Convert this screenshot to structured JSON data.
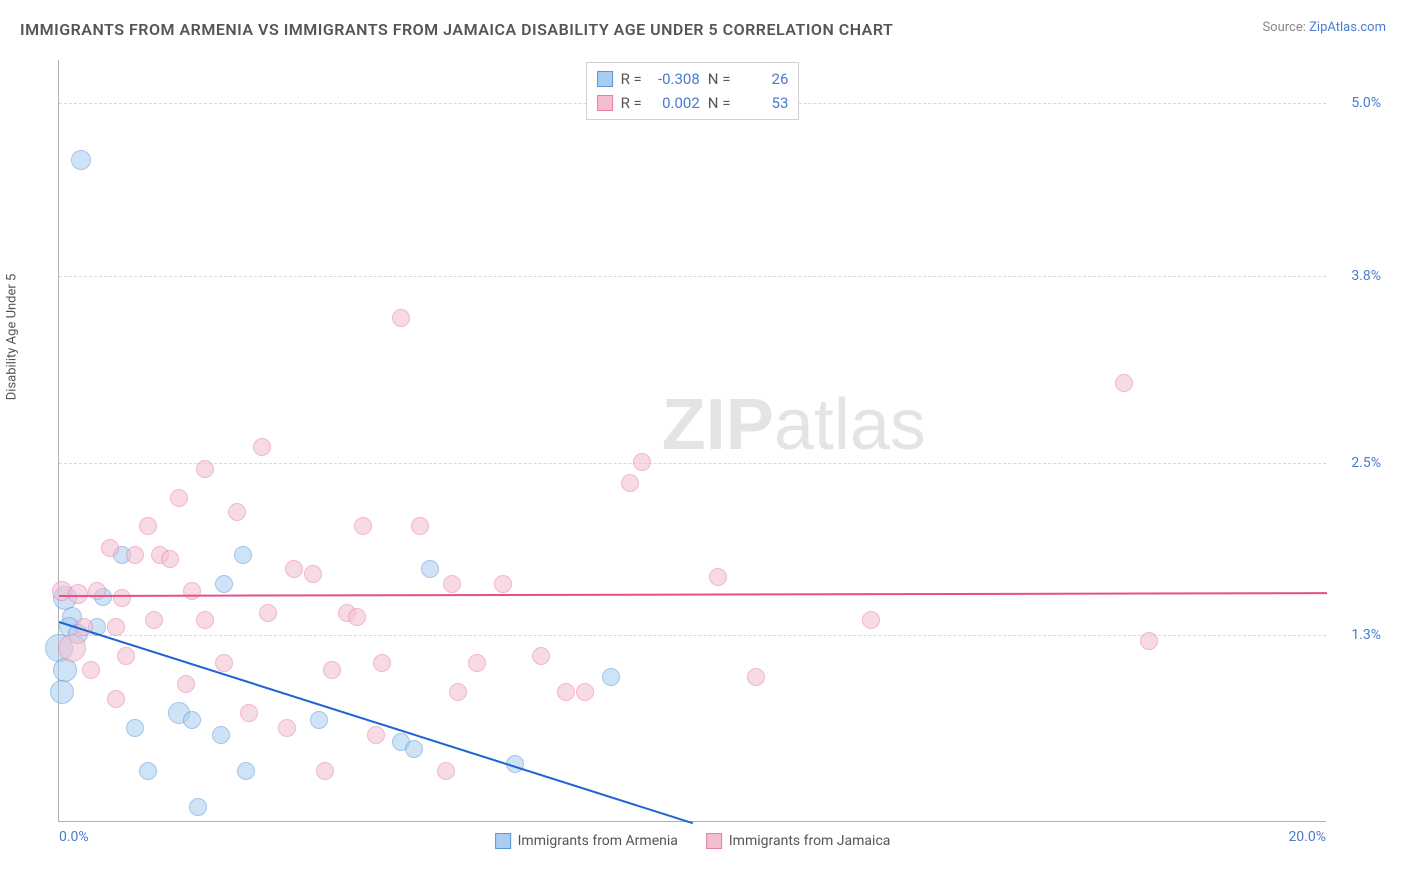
{
  "title": "IMMIGRANTS FROM ARMENIA VS IMMIGRANTS FROM JAMAICA DISABILITY AGE UNDER 5 CORRELATION CHART",
  "source_label": "Source:",
  "source_name": "ZipAtlas.com",
  "ylabel": "Disability Age Under 5",
  "watermark_a": "ZIP",
  "watermark_b": "atlas",
  "chart": {
    "type": "scatter",
    "xlim": [
      0,
      20
    ],
    "ylim": [
      0,
      5.3
    ],
    "xtick_labels": [
      "0.0%",
      "20.0%"
    ],
    "ytick_values": [
      1.3,
      2.5,
      3.8,
      5.0
    ],
    "ytick_labels": [
      "1.3%",
      "2.5%",
      "3.8%",
      "5.0%"
    ],
    "background_color": "#ffffff",
    "grid_color": "#d8d8d8",
    "axis_color": "#b0b0b0",
    "tick_color": "#4a7bd0",
    "point_radius": 9,
    "point_opacity": 0.55,
    "series": [
      {
        "name": "Immigrants from Armenia",
        "fill": "#a9cdf0",
        "stroke": "#5a96d8",
        "trend_color": "#1f63d6",
        "R": "-0.308",
        "N": "26",
        "trend": {
          "x1": 0,
          "y1": 1.4,
          "x2": 10.0,
          "y2": 0.0,
          "dash_to_x": 20
        },
        "points": [
          {
            "x": 0.35,
            "y": 4.6,
            "r": 10
          },
          {
            "x": 0.1,
            "y": 1.55,
            "r": 12
          },
          {
            "x": 0.2,
            "y": 1.42,
            "r": 10
          },
          {
            "x": 0.15,
            "y": 1.35,
            "r": 10
          },
          {
            "x": 0.0,
            "y": 1.2,
            "r": 14
          },
          {
            "x": 0.3,
            "y": 1.3,
            "r": 10
          },
          {
            "x": 0.1,
            "y": 1.05,
            "r": 12
          },
          {
            "x": 0.05,
            "y": 0.9,
            "r": 12
          },
          {
            "x": 1.0,
            "y": 1.85,
            "r": 9
          },
          {
            "x": 2.9,
            "y": 1.85,
            "r": 9
          },
          {
            "x": 2.6,
            "y": 1.65,
            "r": 9
          },
          {
            "x": 1.2,
            "y": 0.65,
            "r": 9
          },
          {
            "x": 1.9,
            "y": 0.75,
            "r": 11
          },
          {
            "x": 2.1,
            "y": 0.7,
            "r": 9
          },
          {
            "x": 2.55,
            "y": 0.6,
            "r": 9
          },
          {
            "x": 1.4,
            "y": 0.35,
            "r": 9
          },
          {
            "x": 2.95,
            "y": 0.35,
            "r": 9
          },
          {
            "x": 2.2,
            "y": 0.1,
            "r": 9
          },
          {
            "x": 4.1,
            "y": 0.7,
            "r": 9
          },
          {
            "x": 5.4,
            "y": 0.55,
            "r": 9
          },
          {
            "x": 5.6,
            "y": 0.5,
            "r": 9
          },
          {
            "x": 5.85,
            "y": 1.75,
            "r": 9
          },
          {
            "x": 7.2,
            "y": 0.4,
            "r": 9
          },
          {
            "x": 8.7,
            "y": 1.0,
            "r": 9
          },
          {
            "x": 0.7,
            "y": 1.56,
            "r": 9
          },
          {
            "x": 0.6,
            "y": 1.35,
            "r": 9
          }
        ]
      },
      {
        "name": "Immigrants from Jamaica",
        "fill": "#f4bdd1",
        "stroke": "#e77da8",
        "trend_color": "#e54f8a",
        "R": "0.002",
        "N": "53",
        "trend": {
          "x1": 0,
          "y1": 1.58,
          "x2": 20,
          "y2": 1.6
        },
        "points": [
          {
            "x": 0.05,
            "y": 1.6,
            "r": 10
          },
          {
            "x": 0.3,
            "y": 1.58,
            "r": 10
          },
          {
            "x": 0.2,
            "y": 1.2,
            "r": 14
          },
          {
            "x": 0.6,
            "y": 1.6,
            "r": 9
          },
          {
            "x": 1.0,
            "y": 1.55,
            "r": 9
          },
          {
            "x": 1.5,
            "y": 1.4,
            "r": 9
          },
          {
            "x": 2.3,
            "y": 1.4,
            "r": 9
          },
          {
            "x": 1.2,
            "y": 1.85,
            "r": 9
          },
          {
            "x": 1.6,
            "y": 1.85,
            "r": 9
          },
          {
            "x": 1.75,
            "y": 1.82,
            "r": 9
          },
          {
            "x": 2.3,
            "y": 2.45,
            "r": 9
          },
          {
            "x": 2.8,
            "y": 2.15,
            "r": 9
          },
          {
            "x": 3.2,
            "y": 2.6,
            "r": 9
          },
          {
            "x": 3.7,
            "y": 1.75,
            "r": 9
          },
          {
            "x": 4.0,
            "y": 1.72,
            "r": 9
          },
          {
            "x": 4.55,
            "y": 1.45,
            "r": 9
          },
          {
            "x": 4.7,
            "y": 1.42,
            "r": 9
          },
          {
            "x": 4.8,
            "y": 2.05,
            "r": 9
          },
          {
            "x": 5.4,
            "y": 3.5,
            "r": 9
          },
          {
            "x": 5.7,
            "y": 2.05,
            "r": 9
          },
          {
            "x": 5.1,
            "y": 1.1,
            "r": 9
          },
          {
            "x": 6.2,
            "y": 1.65,
            "r": 9
          },
          {
            "x": 6.6,
            "y": 1.1,
            "r": 9
          },
          {
            "x": 6.3,
            "y": 0.9,
            "r": 9
          },
          {
            "x": 4.2,
            "y": 0.35,
            "r": 9
          },
          {
            "x": 6.1,
            "y": 0.35,
            "r": 9
          },
          {
            "x": 7.6,
            "y": 1.15,
            "r": 9
          },
          {
            "x": 8.0,
            "y": 0.9,
            "r": 9
          },
          {
            "x": 8.3,
            "y": 0.9,
            "r": 9
          },
          {
            "x": 9.0,
            "y": 2.35,
            "r": 9
          },
          {
            "x": 9.2,
            "y": 2.5,
            "r": 9
          },
          {
            "x": 10.4,
            "y": 1.7,
            "r": 9
          },
          {
            "x": 11.0,
            "y": 1.0,
            "r": 9
          },
          {
            "x": 12.8,
            "y": 1.4,
            "r": 9
          },
          {
            "x": 16.8,
            "y": 3.05,
            "r": 9
          },
          {
            "x": 17.2,
            "y": 1.25,
            "r": 9
          },
          {
            "x": 1.05,
            "y": 1.15,
            "r": 9
          },
          {
            "x": 0.9,
            "y": 0.85,
            "r": 9
          },
          {
            "x": 2.0,
            "y": 0.95,
            "r": 9
          },
          {
            "x": 3.0,
            "y": 0.75,
            "r": 9
          },
          {
            "x": 3.6,
            "y": 0.65,
            "r": 9
          },
          {
            "x": 1.4,
            "y": 2.05,
            "r": 9
          },
          {
            "x": 0.4,
            "y": 1.35,
            "r": 9
          },
          {
            "x": 0.9,
            "y": 1.35,
            "r": 9
          },
          {
            "x": 2.6,
            "y": 1.1,
            "r": 9
          },
          {
            "x": 7.0,
            "y": 1.65,
            "r": 9
          },
          {
            "x": 4.3,
            "y": 1.05,
            "r": 9
          },
          {
            "x": 3.3,
            "y": 1.45,
            "r": 9
          },
          {
            "x": 0.8,
            "y": 1.9,
            "r": 9
          },
          {
            "x": 1.9,
            "y": 2.25,
            "r": 9
          },
          {
            "x": 0.5,
            "y": 1.05,
            "r": 9
          },
          {
            "x": 2.1,
            "y": 1.6,
            "r": 9
          },
          {
            "x": 5.0,
            "y": 0.6,
            "r": 9
          }
        ]
      }
    ]
  },
  "legend_stats_prefix_r": "R =",
  "legend_stats_prefix_n": "N ="
}
